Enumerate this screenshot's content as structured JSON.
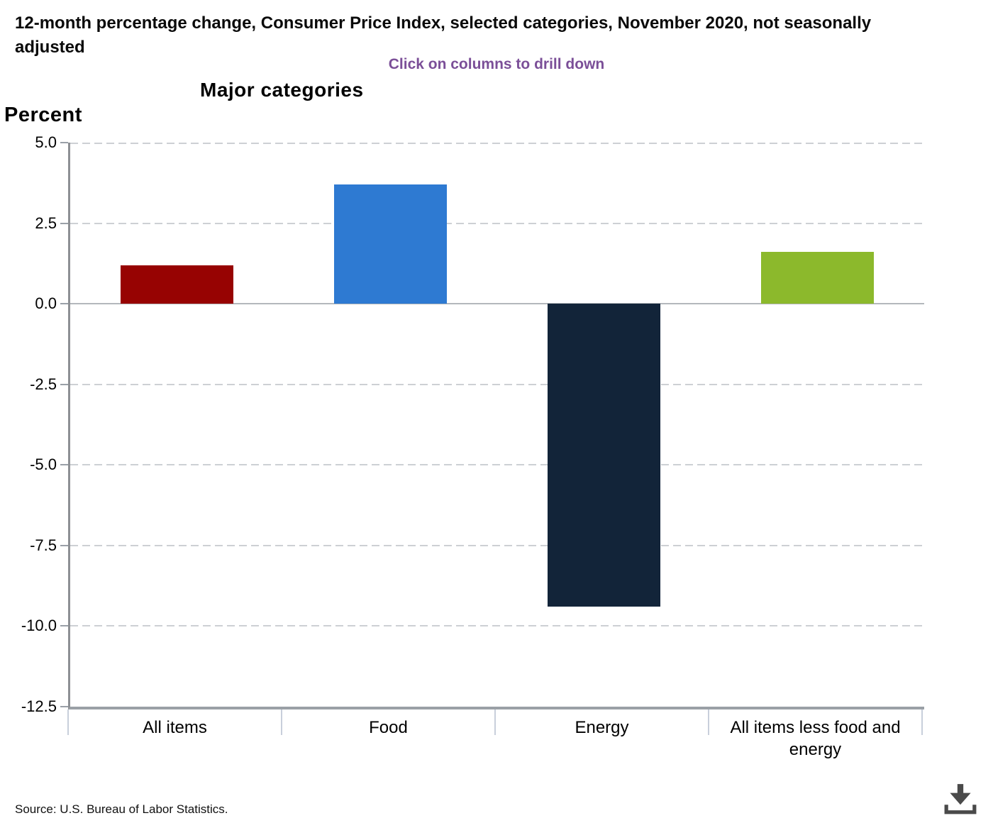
{
  "header": {
    "title": "12-month percentage change, Consumer Price Index, selected categories, November 2020, not seasonally adjusted",
    "subtitle": "Click on columns to drill down",
    "chart_title": "Major categories",
    "y_axis_title": "Percent"
  },
  "chart_data": {
    "type": "bar",
    "title": "Major categories",
    "ylabel": "Percent",
    "categories": [
      "All items",
      "Food",
      "Energy",
      "All items less food and energy"
    ],
    "values": [
      1.2,
      3.7,
      -9.4,
      1.6
    ],
    "bar_colors": [
      "#970302",
      "#2e7ad2",
      "#122439",
      "#8cb92c"
    ],
    "ylim": [
      -12.5,
      5.0
    ],
    "ytick_labels": [
      "5.0",
      "2.5",
      "0.0",
      "-2.5",
      "-5.0",
      "-7.5",
      "-10.0",
      "-12.5"
    ],
    "grid": "horizontal dashed gridlines, solid zero line",
    "legend": "none"
  },
  "colors": {
    "subtitle_purple": "#7b4f98",
    "download_icon_gray": "#4a4a4a"
  },
  "footer": {
    "source": "Source: U.S. Bureau of Labor Statistics.",
    "download_icon": "download-icon"
  }
}
